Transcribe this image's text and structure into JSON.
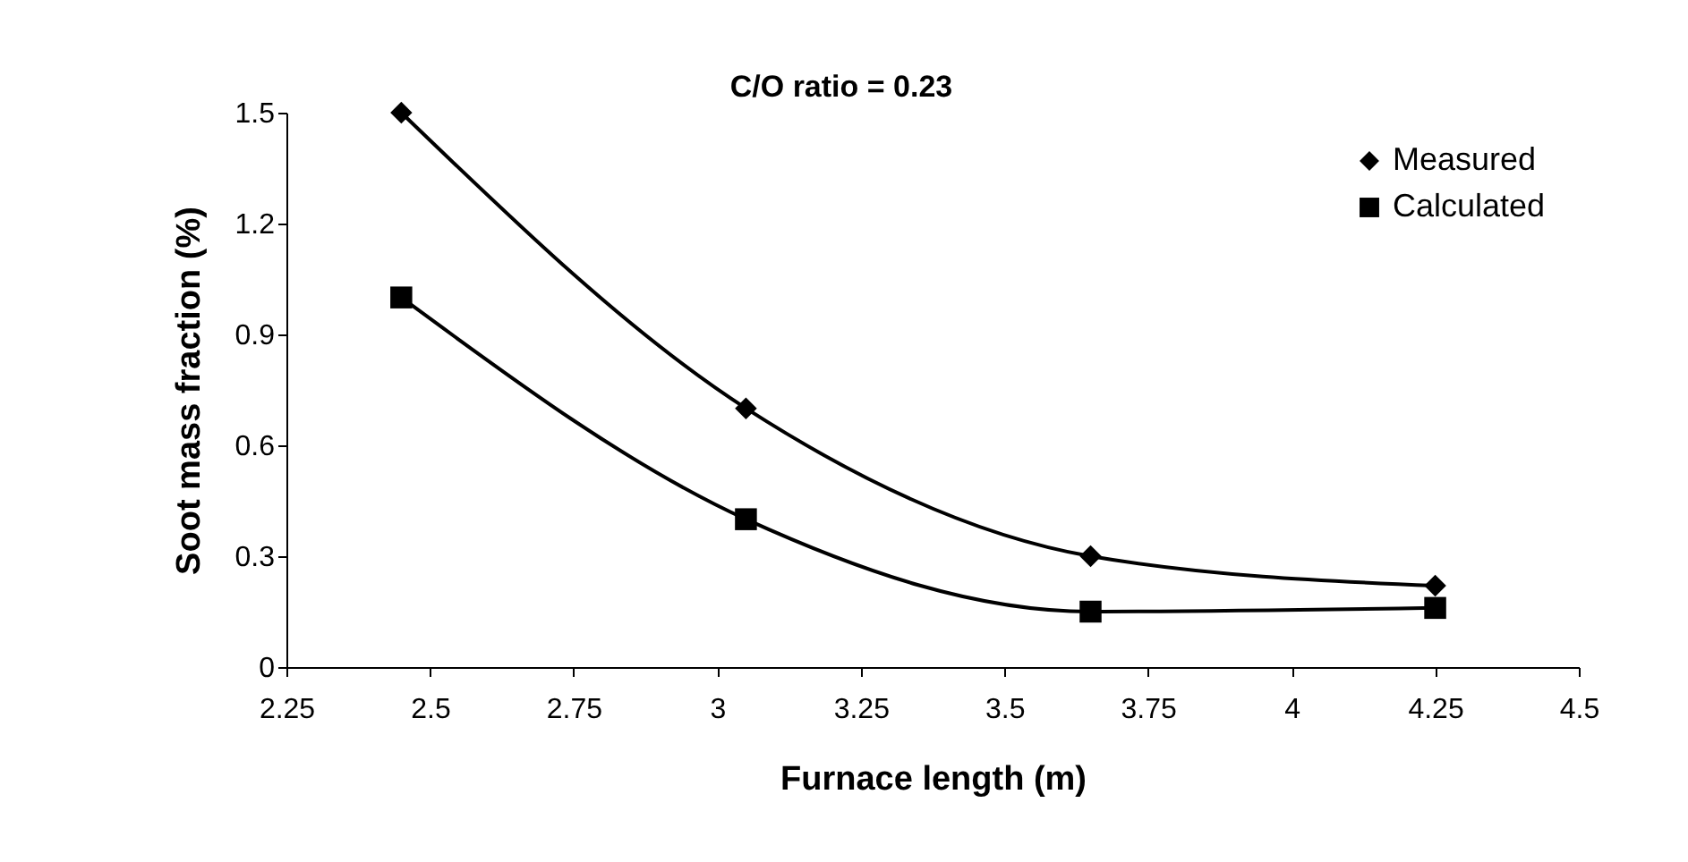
{
  "chart_data": {
    "type": "line",
    "annotations": [
      "C/O ratio = 0.23"
    ],
    "xlabel": "Furnace length (m)",
    "ylabel": "Soot mass fraction (%)",
    "x": [
      2.45,
      3.05,
      3.65,
      4.25
    ],
    "series": [
      {
        "name": "Measured",
        "color": "#000000",
        "marker": "diamond",
        "values": [
          1.5,
          0.7,
          0.3,
          0.22
        ]
      },
      {
        "name": "Calculated",
        "color": "#000000",
        "marker": "square",
        "values": [
          1.0,
          0.4,
          0.15,
          0.16
        ]
      }
    ],
    "xlim": [
      2.25,
      4.5
    ],
    "xticks": [
      2.25,
      2.5,
      2.75,
      3,
      3.25,
      3.5,
      3.75,
      4,
      4.25,
      4.5
    ],
    "ylim": [
      0,
      1.5
    ],
    "yticks": [
      0,
      0.3,
      0.6,
      0.9,
      1.2,
      1.5
    ],
    "grid": false,
    "legend": "top right",
    "line_style": "solid"
  }
}
